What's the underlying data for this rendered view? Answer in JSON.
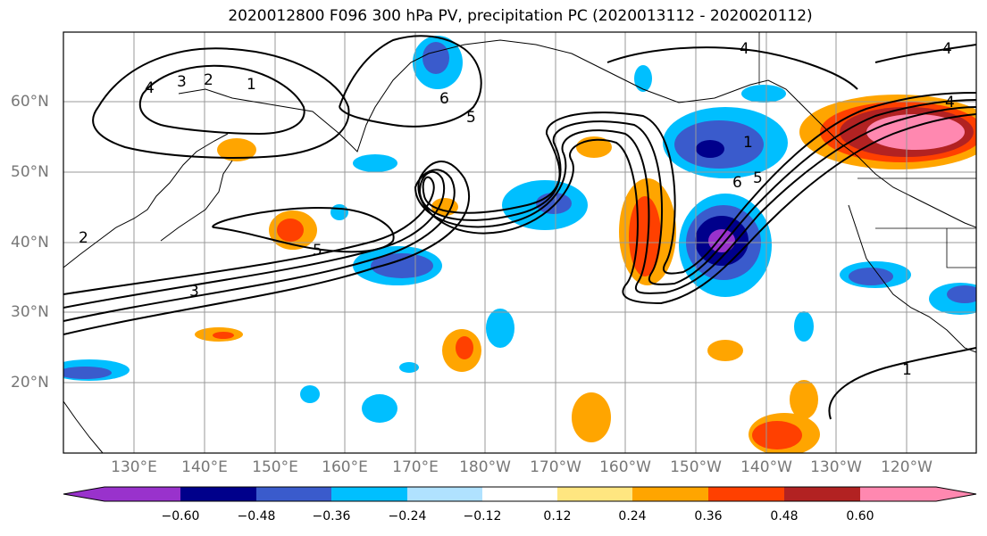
{
  "title": "2020012800 F096 300 hPa PV, precipitation PC (2020013112 - 2020020112)",
  "lat_labels": [
    "60°N",
    "50°N",
    "40°N",
    "30°N",
    "20°N"
  ],
  "lon_labels": [
    "130°E",
    "140°E",
    "150°E",
    "160°E",
    "170°E",
    "180°W",
    "170°W",
    "160°W",
    "150°W",
    "140°W",
    "130°W",
    "120°W"
  ],
  "contour_labels": [
    "4",
    "3",
    "2",
    "1",
    "5",
    "3",
    "2",
    "5",
    "6",
    "4",
    "4",
    "4",
    "1",
    "6",
    "5",
    "1"
  ],
  "colorbar": {
    "ticks": [
      "−0.60",
      "−0.48",
      "−0.36",
      "−0.24",
      "−0.12",
      "0.12",
      "0.24",
      "0.36",
      "0.48",
      "0.60"
    ],
    "colors": [
      "#9932cc",
      "#00008b",
      "#3a5bcc",
      "#00bfff",
      "#b0e2ff",
      "#ffffff",
      "#ffe680",
      "#ffa500",
      "#ff4000",
      "#b22222",
      "#ff88b0"
    ]
  }
}
